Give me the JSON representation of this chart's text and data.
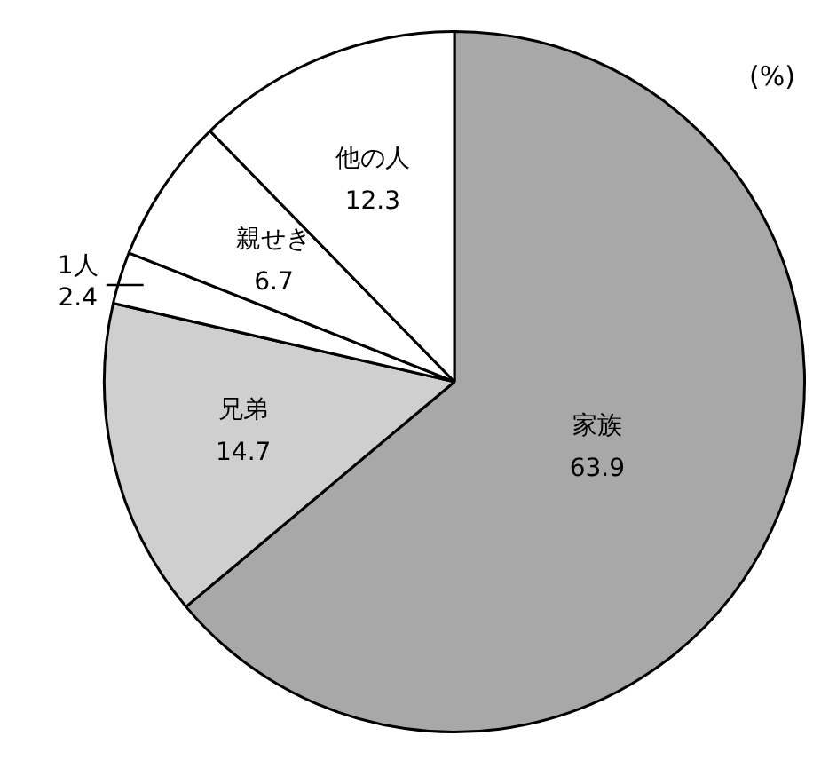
{
  "chart_data": {
    "type": "pie",
    "categories": [
      "家族",
      "兄弟",
      "1人",
      "親せき",
      "他の人"
    ],
    "values": [
      63.9,
      14.7,
      2.4,
      6.7,
      12.3
    ],
    "colors": [
      "#a8a8a8",
      "#cfcfcf",
      "#ffffff",
      "#ffffff",
      "#ffffff"
    ],
    "data_labels": true,
    "legend": false,
    "annotations": [
      "(%)"
    ]
  }
}
